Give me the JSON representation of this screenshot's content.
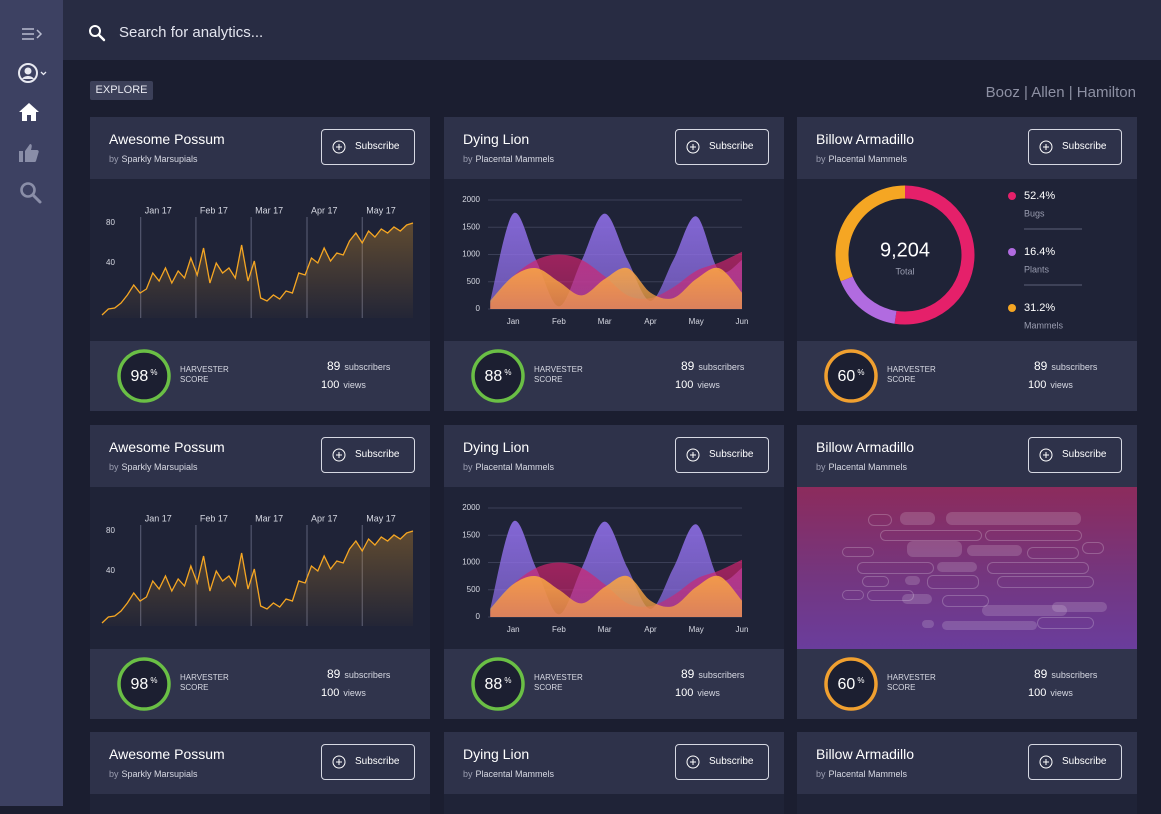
{
  "search": {
    "placeholder": "Search for analytics..."
  },
  "explore": "EXPLORE",
  "brand": "Booz | Allen | Hamilton",
  "cards": [
    {
      "title": "Awesome Possum",
      "by": "by",
      "author": "Sparkly Marsupials",
      "button": "Subscribe",
      "chart": {
        "type": "line",
        "color": "#f5a623",
        "values": [
          -12,
          -6,
          -5,
          0,
          8,
          18,
          10,
          14,
          30,
          22,
          35,
          20,
          32,
          25,
          45,
          28,
          55,
          20,
          40,
          30,
          35,
          25,
          58,
          22,
          42,
          5,
          2,
          8,
          4,
          12,
          10,
          30,
          28,
          45,
          40,
          55,
          42,
          50,
          48,
          62,
          70,
          60,
          72,
          66,
          74,
          70,
          76,
          72,
          78,
          80
        ],
        "xlim": [
          0,
          49
        ],
        "xticks": [
          {
            "value": 6.1,
            "label": "Jan 17"
          },
          {
            "value": 14.8,
            "label": "Feb 17"
          },
          {
            "value": 23.5,
            "label": "Mar 17"
          },
          {
            "value": 32.3,
            "label": "Apr 17"
          },
          {
            "value": 41.0,
            "label": "May 17"
          }
        ],
        "ylim": [
          -15,
          108
        ],
        "yticks": [
          40,
          80
        ],
        "grid": "x"
      },
      "footer": {
        "score": 98,
        "score_unit": "%",
        "score_label_1": "HARVESTER",
        "score_label_2": "SCORE",
        "ring_color": "#6abf45",
        "subscribers": 89,
        "subscribers_label": "subscribers",
        "views": 100,
        "views_label": "views"
      }
    },
    {
      "title": "Dying Lion",
      "by": "by",
      "author": "Placental Mammels",
      "button": "Subscribe",
      "chart": {
        "type": "area",
        "x": [
          -0.5,
          0,
          0.5,
          1,
          1.5,
          2,
          2.5,
          3,
          3.5,
          4,
          4.5,
          5
        ],
        "xlim": [
          -0.55,
          5
        ],
        "xticks": [
          {
            "value": 0,
            "label": "Jan"
          },
          {
            "value": 1,
            "label": "Feb"
          },
          {
            "value": 2,
            "label": "Mar"
          },
          {
            "value": 3,
            "label": "Apr"
          },
          {
            "value": 4,
            "label": "May"
          },
          {
            "value": 5,
            "label": "Jun"
          }
        ],
        "ylim": [
          0,
          2000
        ],
        "yticks": [
          0,
          500,
          1000,
          1500,
          2000
        ],
        "grid": "y",
        "series": [
          {
            "color": "#8e6ee6",
            "values": [
              150,
              1750,
              900,
              50,
              900,
              1750,
              900,
              150,
              900,
              1700,
              700,
              900
            ]
          },
          {
            "color": "#d2236e",
            "values": [
              100,
              600,
              900,
              1000,
              900,
              600,
              250,
              200,
              400,
              700,
              850,
              1050
            ]
          },
          {
            "color": "#f8a444",
            "values": [
              150,
              600,
              750,
              500,
              250,
              550,
              750,
              300,
              200,
              550,
              750,
              300
            ]
          }
        ]
      },
      "footer": {
        "score": 88,
        "score_unit": "%",
        "score_label_1": "HARVESTER",
        "score_label_2": "SCORE",
        "ring_color": "#6abf45",
        "subscribers": 89,
        "subscribers_label": "subscribers",
        "views": 100,
        "views_label": "views"
      }
    },
    {
      "title": "Billow Armadillo",
      "by": "by",
      "author": "Placental Mammels",
      "button": "Subscribe",
      "chart": {
        "type": "pie",
        "donut": true,
        "categories": [
          "Bugs",
          "Plants",
          "Mammels"
        ],
        "values": [
          52.4,
          16.4,
          31.2
        ],
        "value_labels": [
          "52.4%",
          "16.4%",
          "31.2%"
        ],
        "colors": [
          "#e5206a",
          "#b16be0",
          "#f5a623"
        ],
        "center_value": 9204,
        "center_value_label": "9,204",
        "center_label": "Total"
      },
      "footer": {
        "score": 60,
        "score_unit": "%",
        "score_label_1": "HARVESTER",
        "score_label_2": "SCORE",
        "ring_color": "#f0a030",
        "subscribers": 89,
        "subscribers_label": "subscribers",
        "views": 100,
        "views_label": "views"
      }
    },
    {
      "title": "Awesome Possum",
      "by": "by",
      "author": "Sparkly Marsupials",
      "button": "Subscribe",
      "chart": {
        "type": "line",
        "color": "#f5a623",
        "values": [
          -12,
          -6,
          -5,
          0,
          8,
          18,
          10,
          14,
          30,
          22,
          35,
          20,
          32,
          25,
          45,
          28,
          55,
          20,
          40,
          30,
          35,
          25,
          58,
          22,
          42,
          5,
          2,
          8,
          4,
          12,
          10,
          30,
          28,
          45,
          40,
          55,
          42,
          50,
          48,
          62,
          70,
          60,
          72,
          66,
          74,
          70,
          76,
          72,
          78,
          80
        ],
        "xlim": [
          0,
          49
        ],
        "xticks": [
          {
            "value": 6.1,
            "label": "Jan 17"
          },
          {
            "value": 14.8,
            "label": "Feb 17"
          },
          {
            "value": 23.5,
            "label": "Mar 17"
          },
          {
            "value": 32.3,
            "label": "Apr 17"
          },
          {
            "value": 41.0,
            "label": "May 17"
          }
        ],
        "ylim": [
          -15,
          108
        ],
        "yticks": [
          40,
          80
        ],
        "grid": "x"
      },
      "footer": {
        "score": 98,
        "score_unit": "%",
        "score_label_1": "HARVESTER",
        "score_label_2": "SCORE",
        "ring_color": "#6abf45",
        "subscribers": 89,
        "subscribers_label": "subscribers",
        "views": 100,
        "views_label": "views"
      }
    },
    {
      "title": "Dying Lion",
      "by": "by",
      "author": "Placental Mammels",
      "button": "Subscribe",
      "chart": {
        "type": "area",
        "x": [
          -0.5,
          0,
          0.5,
          1,
          1.5,
          2,
          2.5,
          3,
          3.5,
          4,
          4.5,
          5
        ],
        "xlim": [
          -0.55,
          5
        ],
        "xticks": [
          {
            "value": 0,
            "label": "Jan"
          },
          {
            "value": 1,
            "label": "Feb"
          },
          {
            "value": 2,
            "label": "Mar"
          },
          {
            "value": 3,
            "label": "Apr"
          },
          {
            "value": 4,
            "label": "May"
          },
          {
            "value": 5,
            "label": "Jun"
          }
        ],
        "ylim": [
          0,
          2000
        ],
        "yticks": [
          0,
          500,
          1000,
          1500,
          2000
        ],
        "grid": "y",
        "series": [
          {
            "color": "#8e6ee6",
            "values": [
              150,
              1750,
              900,
              50,
              900,
              1750,
              900,
              150,
              900,
              1700,
              700,
              900
            ]
          },
          {
            "color": "#d2236e",
            "values": [
              100,
              600,
              900,
              1000,
              900,
              600,
              250,
              200,
              400,
              700,
              850,
              1050
            ]
          },
          {
            "color": "#f8a444",
            "values": [
              150,
              600,
              750,
              500,
              250,
              550,
              750,
              300,
              200,
              550,
              750,
              300
            ]
          }
        ]
      },
      "footer": {
        "score": 88,
        "score_unit": "%",
        "score_label_1": "HARVESTER",
        "score_label_2": "SCORE",
        "ring_color": "#6abf45",
        "subscribers": 89,
        "subscribers_label": "subscribers",
        "views": 100,
        "views_label": "views"
      }
    },
    {
      "title": "Billow Armadillo",
      "by": "by",
      "author": "Placental Mammels",
      "button": "Subscribe",
      "footer": {
        "score": 60,
        "score_unit": "%",
        "score_label_1": "HARVESTER",
        "score_label_2": "SCORE",
        "ring_color": "#f0a030",
        "subscribers": 89,
        "subscribers_label": "subscribers",
        "views": 100,
        "views_label": "views"
      }
    },
    {
      "title": "Awesome Possum",
      "by": "by",
      "author": "Sparkly Marsupials",
      "button": "Subscribe"
    },
    {
      "title": "Dying Lion",
      "by": "by",
      "author": "Placental Mammels",
      "button": "Subscribe"
    },
    {
      "title": "Billow Armadillo",
      "by": "by",
      "author": "Placental Mammels",
      "button": "Subscribe"
    }
  ]
}
